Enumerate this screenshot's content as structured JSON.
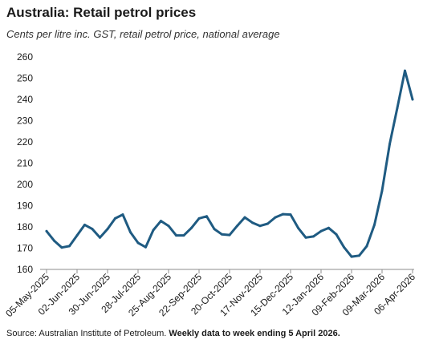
{
  "header": {
    "title": "Australia: Retail petrol prices",
    "subtitle": "Cents per litre inc. GST, retail petrol price, national average"
  },
  "footer": {
    "source": "Source: Australian Institute of Petroleum.",
    "note": "Weekly data to week ending 5 April 2026."
  },
  "colors": {
    "line": "#1f5b82",
    "axis": "#8c8c8c",
    "grid": "#d9d9d9"
  },
  "chart_data": {
    "type": "line",
    "title": "Australia: Retail petrol prices",
    "subtitle": "Cents per litre inc. GST, retail petrol price, national average",
    "xlabel": "",
    "ylabel": "",
    "ylim": [
      160,
      260
    ],
    "yticks": [
      160,
      170,
      180,
      190,
      200,
      210,
      220,
      230,
      240,
      250,
      260
    ],
    "grid": false,
    "legend": "none",
    "x_tick_labels": [
      "05-May-2025",
      "02-Jun-2025",
      "30-Jun-2025",
      "28-Jul-2025",
      "25-Aug-2025",
      "22-Sep-2025",
      "20-Oct-2025",
      "17-Nov-2025",
      "15-Dec-2025",
      "12-Jan-2026",
      "09-Feb-2026",
      "09-Mar-2026",
      "06-Apr-2026"
    ],
    "x": [
      "2025-05-05",
      "2025-05-12",
      "2025-05-19",
      "2025-05-26",
      "2025-06-02",
      "2025-06-09",
      "2025-06-16",
      "2025-06-23",
      "2025-06-30",
      "2025-07-07",
      "2025-07-14",
      "2025-07-21",
      "2025-07-28",
      "2025-08-04",
      "2025-08-11",
      "2025-08-18",
      "2025-08-25",
      "2025-09-01",
      "2025-09-08",
      "2025-09-15",
      "2025-09-22",
      "2025-09-29",
      "2025-10-06",
      "2025-10-13",
      "2025-10-20",
      "2025-10-27",
      "2025-11-03",
      "2025-11-10",
      "2025-11-17",
      "2025-11-24",
      "2025-12-01",
      "2025-12-08",
      "2025-12-15",
      "2025-12-22",
      "2025-12-29",
      "2026-01-05",
      "2026-01-12",
      "2026-01-19",
      "2026-01-26",
      "2026-02-02",
      "2026-02-09",
      "2026-02-16",
      "2026-02-23",
      "2026-03-02",
      "2026-03-09",
      "2026-03-16",
      "2026-03-23",
      "2026-03-30",
      "2026-04-06"
    ],
    "series": [
      {
        "values": [
          178.0,
          173.5,
          170.3,
          171.0,
          176.0,
          181.0,
          179.0,
          175.0,
          179.0,
          184.0,
          185.8,
          177.5,
          172.5,
          170.5,
          178.5,
          182.8,
          180.5,
          176.0,
          176.0,
          179.5,
          184.0,
          185.0,
          179.0,
          176.5,
          176.2,
          180.5,
          184.5,
          182.0,
          180.5,
          181.5,
          184.5,
          186.0,
          185.8,
          179.5,
          175.0,
          175.5,
          178.0,
          179.5,
          176.5,
          170.5,
          166.0,
          166.5,
          171.0,
          181.0,
          197.0,
          219.0,
          236.0,
          253.5,
          240.0
        ]
      }
    ]
  }
}
